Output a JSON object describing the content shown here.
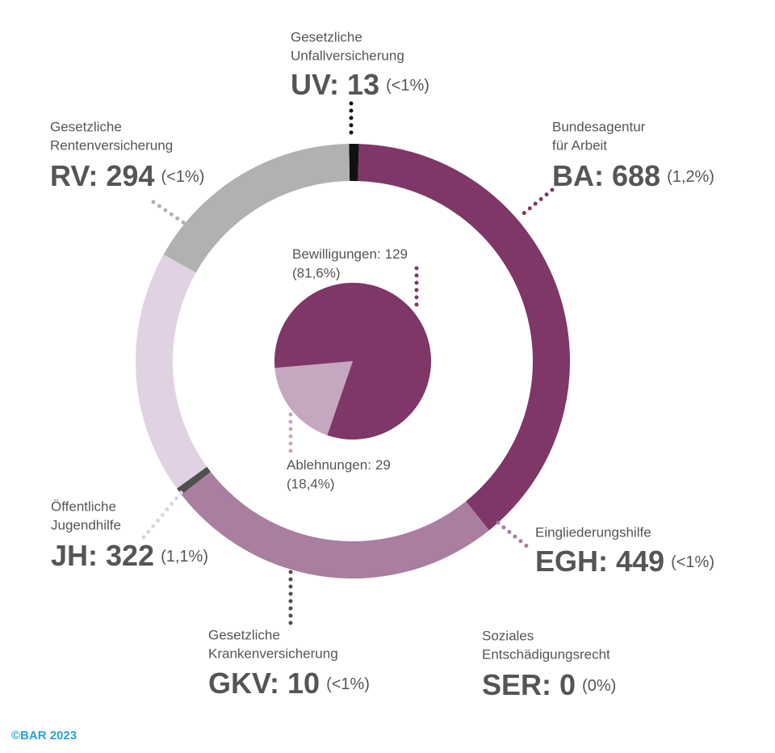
{
  "chart_data": [
    {
      "type": "donut",
      "categories": [
        [
          "Gesetzliche",
          "Unfallversicherung"
        ],
        [
          "Bundesagentur",
          "für Arbeit"
        ],
        [
          "Eingliederungshilfe"
        ],
        [
          "Soziales",
          "Entschädigungsrecht"
        ],
        [
          "Gesetzliche",
          "Krankenversicherung"
        ],
        [
          "Öffentliche",
          "Jugendhilfe"
        ],
        [
          "Gesetzliche",
          "Rentenversicherung"
        ]
      ],
      "abbreviations": [
        "UV:",
        "BA:",
        "EGH:",
        "SER:",
        "GKV:",
        "JH:",
        "RV:"
      ],
      "values": [
        13,
        688,
        449,
        0,
        10,
        322,
        294
      ],
      "shares": [
        "(<1%)",
        "(1,2%)",
        "(<1%)",
        "(0%)",
        "(<1%)",
        "(1,1%)",
        "(<1%)"
      ],
      "colors": [
        "#111111",
        "#7e3766",
        "#a97e9f",
        "#cccccc",
        "#4f4f4f",
        "#e0d2e2",
        "#b1b1b1"
      ]
    },
    {
      "type": "pie",
      "categories": [
        "Ablehnungen:",
        "Bewilligungen:"
      ],
      "values": [
        29,
        129
      ],
      "shares": [
        "(18,4%)",
        "(81,6%)"
      ],
      "colors": [
        "#c5a8c0",
        "#7e3766"
      ]
    }
  ],
  "source": "©BAR 2023"
}
